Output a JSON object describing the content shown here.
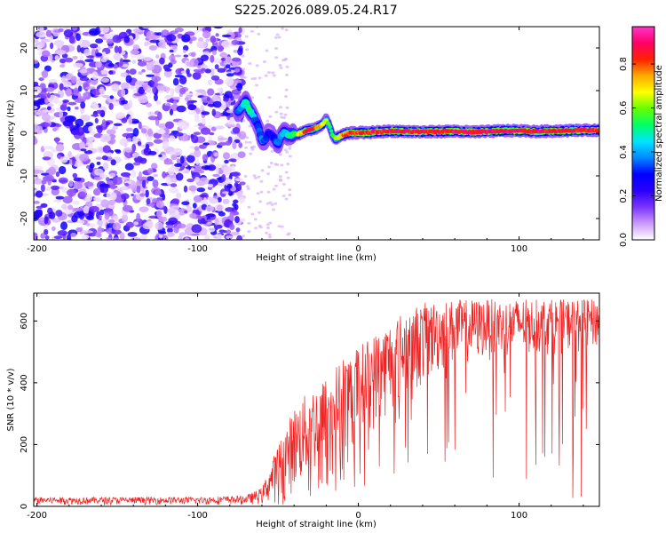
{
  "chart_data": [
    {
      "type": "heatmap",
      "title": "S225.2026.089.05.24.R17",
      "xlabel": "Height of straight line (km)",
      "ylabel": "Frequency (Hz)",
      "xlim": [
        -202,
        150
      ],
      "ylim": [
        -25,
        25
      ],
      "x_ticks": [
        "-200",
        "-100",
        "0",
        "100"
      ],
      "y_ticks": [
        "-20",
        "-10",
        "0",
        "10",
        "20"
      ],
      "colorbar": {
        "label": "Normalized spectral amplitude",
        "range": [
          0.0,
          0.97
        ],
        "ticks": [
          "0.0",
          "0.2",
          "0.4",
          "0.6",
          "0.8"
        ],
        "colors": [
          "#ffffff",
          "#cc99ff",
          "#7a33ff",
          "#2a00ff",
          "#0000ff",
          "#0088ff",
          "#00e5ff",
          "#00ff66",
          "#66ff00",
          "#ffff00",
          "#ffaa00",
          "#ff2200",
          "#ff0066",
          "#ff33cc"
        ]
      },
      "ridge": {
        "x": [
          -75,
          -72,
          -70,
          -68,
          -66,
          -64,
          -62,
          -60,
          -58,
          -56,
          -54,
          -52,
          -50,
          -48,
          -46,
          -44,
          -42,
          -40,
          -38,
          -36,
          -34,
          -32,
          -30,
          -28,
          -26,
          -24,
          -22,
          -20,
          -18,
          -16,
          -14,
          -12,
          -10,
          -8,
          -6,
          -4,
          -2,
          0,
          5,
          10,
          20,
          30,
          40,
          50,
          60,
          70,
          80,
          90,
          100,
          110,
          120,
          130,
          140,
          150
        ],
        "freq": [
          5,
          6.5,
          7.5,
          5.5,
          4.5,
          3,
          1.2,
          -1.8,
          -1.5,
          0,
          -0.5,
          -1.5,
          -2.5,
          -0.5,
          0.5,
          -0.5,
          -0.5,
          0,
          -0.3,
          0,
          0.4,
          0.7,
          0.8,
          1.0,
          1.3,
          1.6,
          2.2,
          3.2,
          1.8,
          -0.5,
          -1.3,
          -0.8,
          -0.5,
          -0.2,
          0,
          0.1,
          0.1,
          0.2,
          0.1,
          0.3,
          0.5,
          0.4,
          0.3,
          0.4,
          0.5,
          0.3,
          0.4,
          0.6,
          0.6,
          0.4,
          0.5,
          0.6,
          0.7,
          0.7
        ],
        "amplitude": [
          0.4,
          0.45,
          0.5,
          0.55,
          0.5,
          0.35,
          0.35,
          0.4,
          0.35,
          0.3,
          0.3,
          0.35,
          0.4,
          0.4,
          0.45,
          0.5,
          0.55,
          0.6,
          0.65,
          0.75,
          0.85,
          0.9,
          0.92,
          0.9,
          0.85,
          0.8,
          0.75,
          0.7,
          0.6,
          0.55,
          0.65,
          0.75,
          0.8,
          0.85,
          0.85,
          0.88,
          0.9,
          0.9,
          0.92,
          0.92,
          0.95,
          0.93,
          0.95,
          0.92,
          0.95,
          0.94,
          0.95,
          0.93,
          0.95,
          0.94,
          0.93,
          0.92,
          0.92,
          0.9
        ]
      },
      "noise_region_x": [
        -202,
        -72
      ]
    },
    {
      "type": "line",
      "xlabel": "Height of straight line (km)",
      "ylabel": "SNR (10 * v/v)",
      "xlim": [
        -202,
        150
      ],
      "ylim": [
        0,
        690
      ],
      "x_ticks": [
        "-200",
        "-100",
        "0",
        "100"
      ],
      "y_ticks": [
        "0",
        "200",
        "400",
        "600"
      ],
      "color": "#ee2222",
      "series": [
        {
          "name": "SNR",
          "envelope_x": [
            -202,
            -100,
            -70,
            -60,
            -50,
            -40,
            -30,
            -20,
            -10,
            0,
            10,
            20,
            30,
            40,
            50,
            60,
            80,
            100,
            120,
            150
          ],
          "upper": [
            30,
            30,
            35,
            60,
            200,
            320,
            380,
            420,
            480,
            520,
            560,
            600,
            640,
            660,
            665,
            670,
            670,
            670,
            670,
            670
          ],
          "lower": [
            5,
            5,
            5,
            5,
            10,
            40,
            80,
            120,
            160,
            200,
            240,
            290,
            340,
            380,
            420,
            450,
            470,
            480,
            490,
            500
          ]
        }
      ]
    }
  ]
}
